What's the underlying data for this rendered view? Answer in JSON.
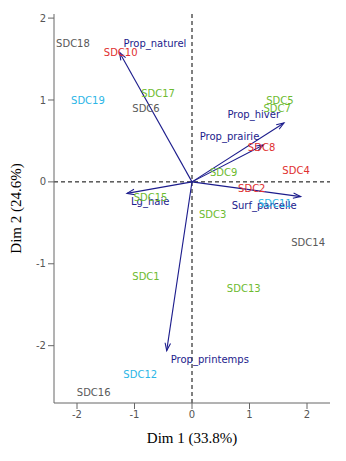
{
  "chart_data": {
    "type": "scatter",
    "x_label": "Dim 1 (33.8%)",
    "y_label": "Dim 2 (24.6%)",
    "xlim": [
      -2.4,
      2.4
    ],
    "ylim": [
      -2.7,
      2.05
    ],
    "xticks": [
      -2,
      -1,
      0,
      1,
      2
    ],
    "yticks": [
      -2,
      -1,
      0,
      1,
      2
    ],
    "grid": false,
    "points": [
      {
        "label": "SDC18",
        "x": -2.07,
        "y": 1.69,
        "color": "#595959"
      },
      {
        "label": "SDC10",
        "x": -1.24,
        "y": 1.58,
        "color": "#e0302f"
      },
      {
        "label": "SDC19",
        "x": -1.81,
        "y": 1.0,
        "color": "#2bb6e6"
      },
      {
        "label": "SDC17",
        "x": -0.59,
        "y": 1.09,
        "color": "#6dbb2f"
      },
      {
        "label": "SDC6",
        "x": -0.8,
        "y": 0.9,
        "color": "#595959"
      },
      {
        "label": "SDC5",
        "x": 1.53,
        "y": 1.0,
        "color": "#6dbb2f"
      },
      {
        "label": "SDC7",
        "x": 1.48,
        "y": 0.9,
        "color": "#6dbb2f"
      },
      {
        "label": "SDC8",
        "x": 1.21,
        "y": 0.43,
        "color": "#e0302f"
      },
      {
        "label": "SDC9",
        "x": 0.55,
        "y": 0.12,
        "color": "#6dbb2f"
      },
      {
        "label": "SDC4",
        "x": 1.81,
        "y": 0.15,
        "color": "#e0302f"
      },
      {
        "label": "SDC2",
        "x": 1.04,
        "y": -0.07,
        "color": "#e0302f"
      },
      {
        "label": "SDC11",
        "x": 1.44,
        "y": -0.26,
        "color": "#2bb6e6"
      },
      {
        "label": "SDC14",
        "x": 2.02,
        "y": -0.74,
        "color": "#595959"
      },
      {
        "label": "SDC3",
        "x": 0.36,
        "y": -0.39,
        "color": "#6dbb2f"
      },
      {
        "label": "SDC15",
        "x": -0.72,
        "y": -0.18,
        "color": "#6dbb2f"
      },
      {
        "label": "SDC1",
        "x": -0.8,
        "y": -1.15,
        "color": "#6dbb2f"
      },
      {
        "label": "SDC13",
        "x": 0.9,
        "y": -1.3,
        "color": "#6dbb2f"
      },
      {
        "label": "SDC12",
        "x": -0.9,
        "y": -2.34,
        "color": "#2bb6e6"
      },
      {
        "label": "SDC16",
        "x": -1.71,
        "y": -2.57,
        "color": "#595959"
      }
    ],
    "vectors": [
      {
        "label": "Prop_naturel",
        "x": -1.26,
        "y": 1.58,
        "color": "#1c1c8c"
      },
      {
        "label": "Prop_prairie",
        "x": 1.24,
        "y": 0.45,
        "color": "#1c1c8c"
      },
      {
        "label": "Prop_hiver",
        "x": 1.6,
        "y": 0.72,
        "color": "#1c1c8c"
      },
      {
        "label": "Surf_parcelle",
        "x": 1.89,
        "y": -0.18,
        "color": "#1c1c8c"
      },
      {
        "label": "Lg_haie",
        "x": -1.13,
        "y": -0.14,
        "color": "#1c1c8c"
      },
      {
        "label": "Prop_printemps",
        "x": -0.44,
        "y": -2.06,
        "color": "#1c1c8c"
      }
    ]
  }
}
